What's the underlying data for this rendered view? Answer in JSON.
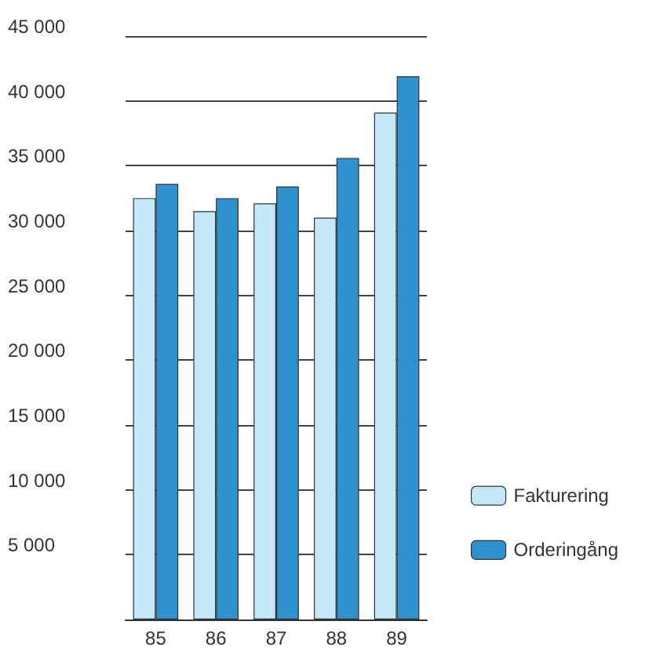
{
  "chart_data": {
    "type": "bar",
    "categories": [
      "85",
      "86",
      "87",
      "88",
      "89"
    ],
    "series": [
      {
        "name": "Fakturering",
        "color": "#c3e8f7",
        "values": [
          32500,
          31500,
          32100,
          31000,
          39100
        ]
      },
      {
        "name": "Orderingång",
        "color": "#2f92cf",
        "values": [
          33600,
          32500,
          33400,
          35600,
          41900
        ]
      }
    ],
    "ylim": [
      0,
      45000
    ],
    "yticks": [
      {
        "value": 0,
        "label": null
      },
      {
        "value": 5000,
        "label": "5 000"
      },
      {
        "value": 10000,
        "label": "10 000"
      },
      {
        "value": 15000,
        "label": "15 000"
      },
      {
        "value": 20000,
        "label": "20 000"
      },
      {
        "value": 25000,
        "label": "25 000"
      },
      {
        "value": 30000,
        "label": "30 000"
      },
      {
        "value": 35000,
        "label": "35 000"
      },
      {
        "value": 40000,
        "label": "40 000"
      },
      {
        "value": 45000,
        "label": "45 000"
      }
    ],
    "grid": "y",
    "legend": "bottom right"
  }
}
